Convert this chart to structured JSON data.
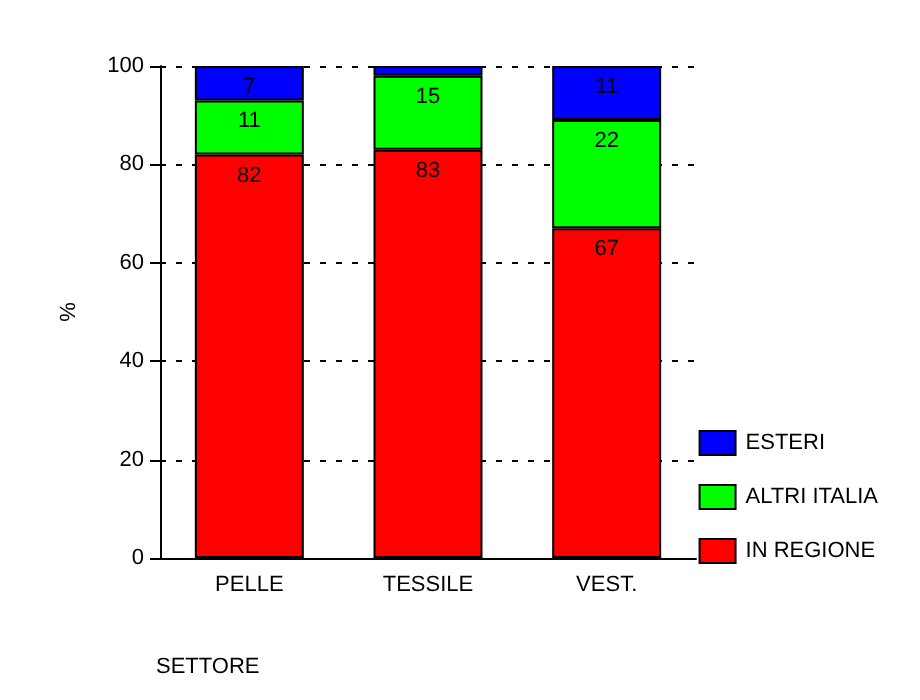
{
  "chart_data": {
    "type": "bar",
    "stacked": true,
    "xlabel": "SETTORE",
    "ylabel": "%",
    "categories": [
      "PELLE",
      "TESSILE",
      "VEST."
    ],
    "series": [
      {
        "name": "IN REGIONE",
        "color": "#ff0000",
        "values": [
          82,
          83,
          67
        ],
        "value_labels": [
          "82",
          "83",
          "67"
        ]
      },
      {
        "name": "ALTRI ITALIA",
        "color": "#00ff00",
        "values": [
          11,
          15,
          22
        ],
        "value_labels": [
          "11",
          "15",
          "22"
        ]
      },
      {
        "name": "ESTERI",
        "color": "#0000ff",
        "values": [
          7,
          2,
          11
        ],
        "value_labels": [
          "7",
          null,
          "11"
        ]
      }
    ],
    "ylim": [
      0,
      100
    ],
    "yticks": [
      0,
      20,
      40,
      60,
      80,
      100
    ],
    "grid": "y",
    "legend": "right"
  }
}
